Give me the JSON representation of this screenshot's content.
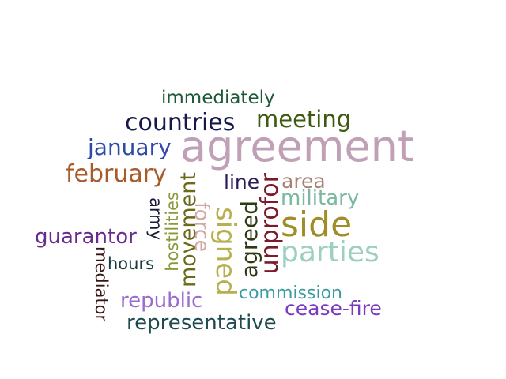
{
  "words": {
    "immediately": {
      "text": "immediately",
      "color": "#1e5a3a"
    },
    "countries": {
      "text": "countries",
      "color": "#14184a"
    },
    "meeting": {
      "text": "meeting",
      "color": "#3e5a12"
    },
    "january": {
      "text": "january",
      "color": "#2e4aa8"
    },
    "agreement": {
      "text": "agreement",
      "color": "#c0a0b6"
    },
    "february": {
      "text": "february",
      "color": "#a85a28"
    },
    "line": {
      "text": "line",
      "color": "#2e1a5a"
    },
    "area": {
      "text": "area",
      "color": "#a88070"
    },
    "military": {
      "text": "military",
      "color": "#7ab8a0"
    },
    "side": {
      "text": "side",
      "color": "#a08c28"
    },
    "parties": {
      "text": "parties",
      "color": "#9ccfc0"
    },
    "guarantor": {
      "text": "guarantor",
      "color": "#6a2a8c"
    },
    "hours": {
      "text": "hours",
      "color": "#1a3a3e"
    },
    "republic": {
      "text": "republic",
      "color": "#9a6ad0"
    },
    "commission": {
      "text": "commission",
      "color": "#3a9aa0"
    },
    "cease_fire": {
      "text": "cease-fire",
      "color": "#7a3ac0"
    },
    "representative": {
      "text": "representative",
      "color": "#1e4a50"
    },
    "mediator": {
      "text": "mediator",
      "color": "#3a1414"
    },
    "army": {
      "text": "army",
      "color": "#1a1a3a"
    },
    "hostilities": {
      "text": "hostilities",
      "color": "#8a9a3a"
    },
    "movement": {
      "text": "movement",
      "color": "#6a6a18"
    },
    "force": {
      "text": "force",
      "color": "#d4a8a0"
    },
    "signed": {
      "text": "signed",
      "color": "#b8b050"
    },
    "agreed": {
      "text": "agreed",
      "color": "#2e3a14"
    },
    "unprofor": {
      "text": "unprofor",
      "color": "#7a1a2a"
    }
  }
}
